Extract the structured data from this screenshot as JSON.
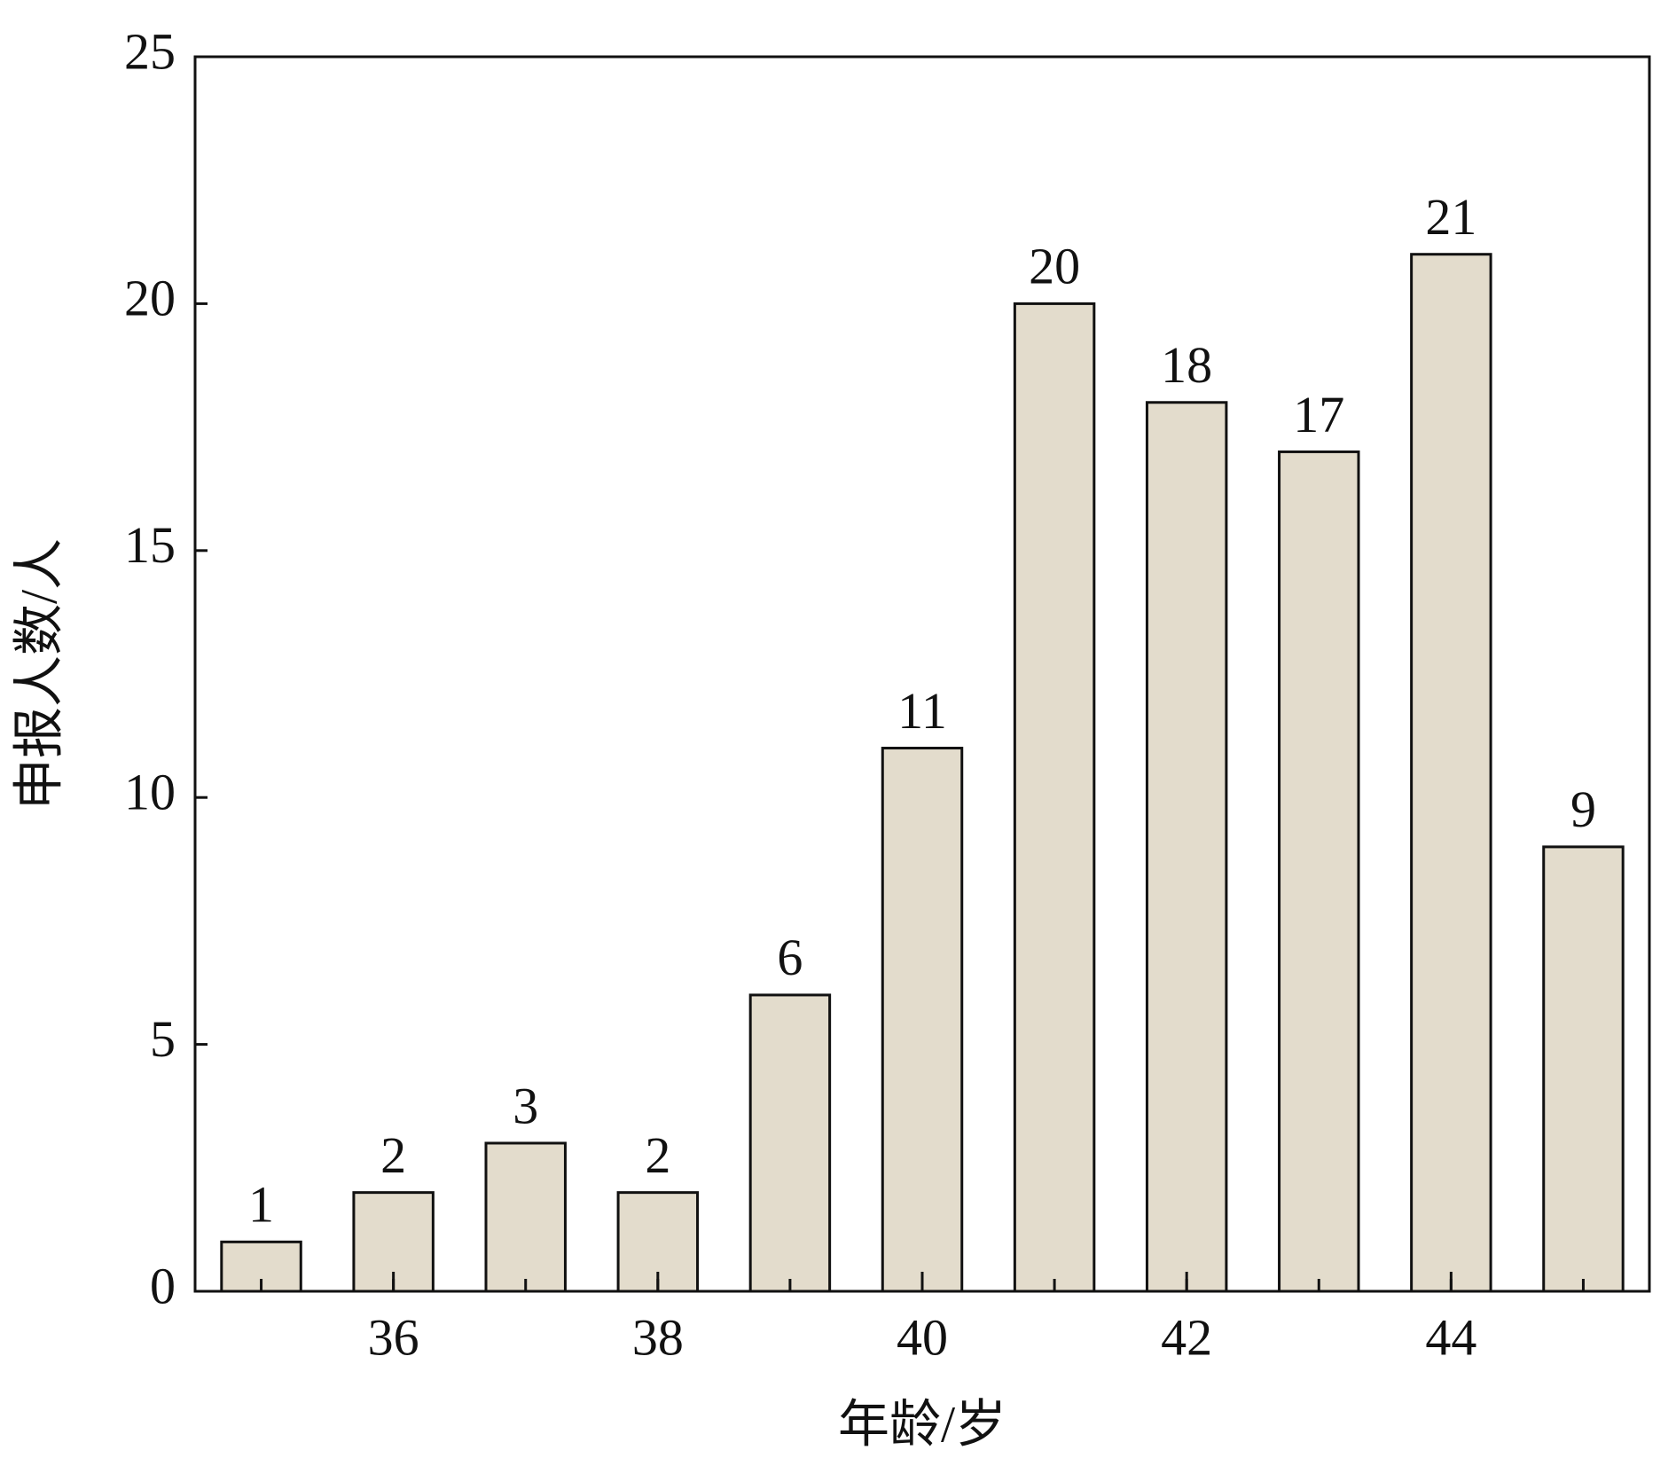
{
  "chart_data": {
    "type": "bar",
    "x_label": "年龄/岁",
    "y_label": "申报人数/人",
    "x": [
      35,
      36,
      37,
      38,
      39,
      40,
      41,
      42,
      43,
      44,
      45
    ],
    "values": [
      1,
      2,
      3,
      2,
      6,
      11,
      20,
      18,
      17,
      21,
      9
    ],
    "color": "#e3dccc",
    "xlim": [
      34.5,
      45.5
    ],
    "xticks": [
      36,
      38,
      40,
      42,
      44
    ],
    "ylim": [
      0,
      25
    ],
    "yticks": [
      0,
      5,
      10,
      15,
      20,
      25
    ],
    "grid": false
  }
}
